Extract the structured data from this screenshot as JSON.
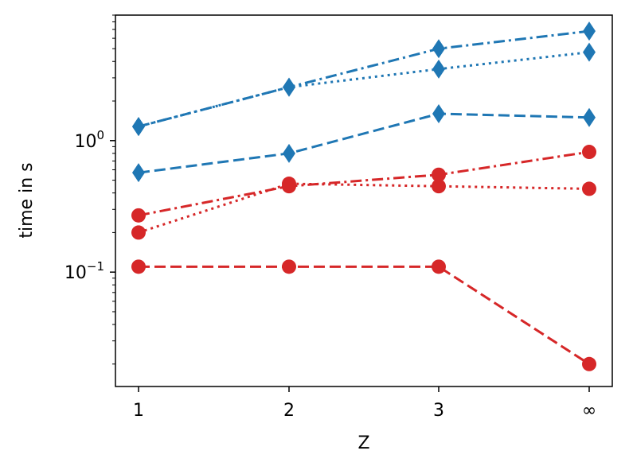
{
  "chart_data": {
    "type": "line",
    "xlabel": "Z",
    "ylabel": "time in s",
    "yscale": "log",
    "ylim": [
      0.0135,
      9.0
    ],
    "categories": [
      "1",
      "2",
      "3",
      "∞"
    ],
    "y_tick_labels": [
      {
        "value": 1.0,
        "base": "10",
        "exp": "0"
      },
      {
        "value": 0.1,
        "base": "10",
        "exp": "−1"
      }
    ],
    "grid": false,
    "legend": "none",
    "series": [
      {
        "color": "#1f77b4",
        "linestyle": "dashdot",
        "marker": "diamond",
        "values": [
          1.28,
          2.55,
          5.0,
          6.8
        ]
      },
      {
        "color": "#1f77b4",
        "linestyle": "dotted",
        "marker": "diamond",
        "values": [
          1.28,
          2.55,
          3.5,
          4.7
        ]
      },
      {
        "color": "#1f77b4",
        "linestyle": "dashed",
        "marker": "diamond",
        "values": [
          0.57,
          0.8,
          1.6,
          1.5
        ]
      },
      {
        "color": "#d62728",
        "linestyle": "dashdot",
        "marker": "circle",
        "values": [
          0.27,
          0.45,
          0.55,
          0.82
        ]
      },
      {
        "color": "#d62728",
        "linestyle": "dotted",
        "marker": "circle",
        "values": [
          0.2,
          0.47,
          0.45,
          0.43
        ]
      },
      {
        "color": "#d62728",
        "linestyle": "dashed",
        "marker": "circle",
        "values": [
          0.11,
          0.11,
          0.11,
          0.02
        ]
      }
    ]
  }
}
